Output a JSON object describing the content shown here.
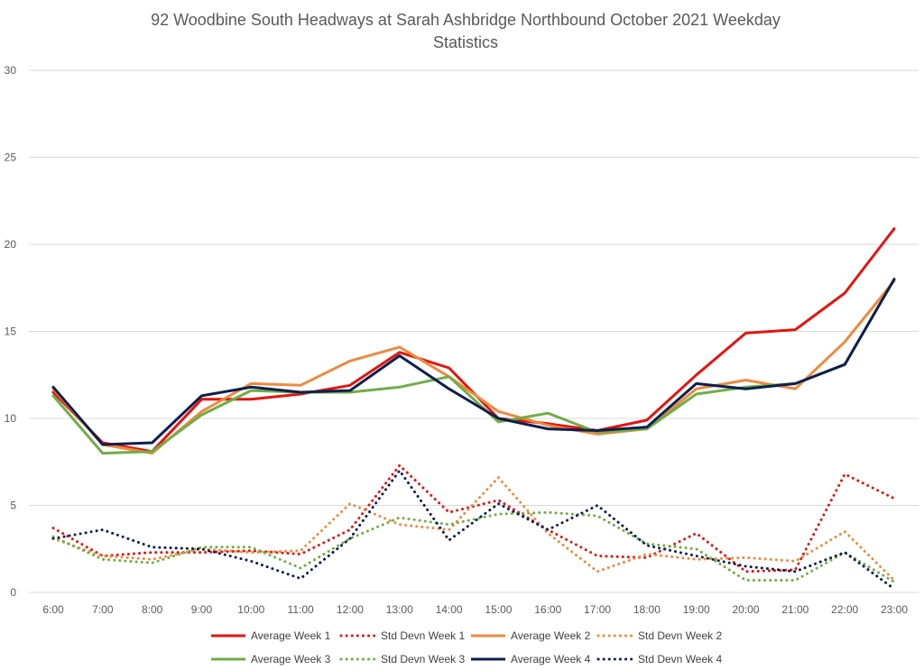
{
  "chart_data": {
    "type": "line",
    "title": "92 Woodbine South Headways at Sarah Ashbridge Northbound October 2021 Weekday Statistics",
    "title_lines": [
      "92 Woodbine South Headways at Sarah Ashbridge Northbound October 2021 Weekday",
      "Statistics"
    ],
    "xlabel": "",
    "ylabel": "",
    "ylim": [
      0,
      30
    ],
    "yticks": [
      0,
      5,
      10,
      15,
      20,
      25,
      30
    ],
    "grid": true,
    "legend_position": "bottom",
    "categories": [
      "6:00",
      "7:00",
      "8:00",
      "9:00",
      "10:00",
      "11:00",
      "12:00",
      "13:00",
      "14:00",
      "15:00",
      "16:00",
      "17:00",
      "18:00",
      "19:00",
      "20:00",
      "21:00",
      "22:00",
      "23:00"
    ],
    "series": [
      {
        "name": "Average Week 1",
        "style": "solid",
        "color": "#E3140F",
        "values": [
          11.5,
          8.6,
          8.1,
          11.1,
          11.1,
          11.4,
          11.9,
          13.8,
          12.9,
          10.0,
          9.7,
          9.3,
          9.9,
          12.5,
          14.9,
          15.1,
          17.2,
          20.9
        ]
      },
      {
        "name": "Std Devn Week 1",
        "style": "dotted",
        "color": "#E3140F",
        "values": [
          3.7,
          2.1,
          2.3,
          2.3,
          2.4,
          2.2,
          3.6,
          7.3,
          4.6,
          5.3,
          3.6,
          2.1,
          2.0,
          3.4,
          1.2,
          1.3,
          6.8,
          5.4
        ]
      },
      {
        "name": "Average Week 2",
        "style": "solid",
        "color": "#ED8A3F",
        "values": [
          11.7,
          8.5,
          8.0,
          10.4,
          12.0,
          11.9,
          13.3,
          14.1,
          12.4,
          10.4,
          9.6,
          9.1,
          9.4,
          11.7,
          12.2,
          11.7,
          14.4,
          17.9
        ]
      },
      {
        "name": "Std Devn Week 2",
        "style": "dotted",
        "color": "#ED8A3F",
        "values": [
          3.1,
          2.1,
          1.9,
          2.5,
          2.3,
          2.4,
          5.1,
          3.9,
          3.6,
          6.6,
          3.4,
          1.2,
          2.2,
          1.9,
          2.0,
          1.8,
          3.5,
          0.7
        ]
      },
      {
        "name": "Average Week 3",
        "style": "solid",
        "color": "#70AD47",
        "values": [
          11.3,
          8.0,
          8.1,
          10.2,
          11.6,
          11.5,
          11.5,
          11.8,
          12.4,
          9.8,
          10.3,
          9.2,
          9.4,
          11.4,
          11.8,
          12.0,
          13.1,
          18.0
        ]
      },
      {
        "name": "Std Devn Week 3",
        "style": "dotted",
        "color": "#70AD47",
        "values": [
          3.2,
          1.9,
          1.7,
          2.6,
          2.6,
          1.4,
          3.1,
          4.3,
          3.9,
          4.5,
          4.6,
          4.4,
          2.8,
          2.5,
          0.7,
          0.7,
          2.3,
          0.6
        ]
      },
      {
        "name": "Average Week 4",
        "style": "solid",
        "color": "#0E1F4E",
        "values": [
          11.8,
          8.5,
          8.6,
          11.3,
          11.8,
          11.5,
          11.6,
          13.6,
          11.7,
          10.0,
          9.4,
          9.3,
          9.5,
          12.0,
          11.7,
          12.0,
          13.1,
          18.0
        ]
      },
      {
        "name": "Std Devn Week 4",
        "style": "dotted",
        "color": "#0E1F4E",
        "values": [
          3.1,
          3.6,
          2.6,
          2.5,
          1.8,
          0.8,
          3.1,
          7.0,
          3.0,
          5.1,
          3.6,
          5.0,
          2.7,
          2.1,
          1.5,
          1.2,
          2.3,
          0.2
        ]
      }
    ]
  }
}
